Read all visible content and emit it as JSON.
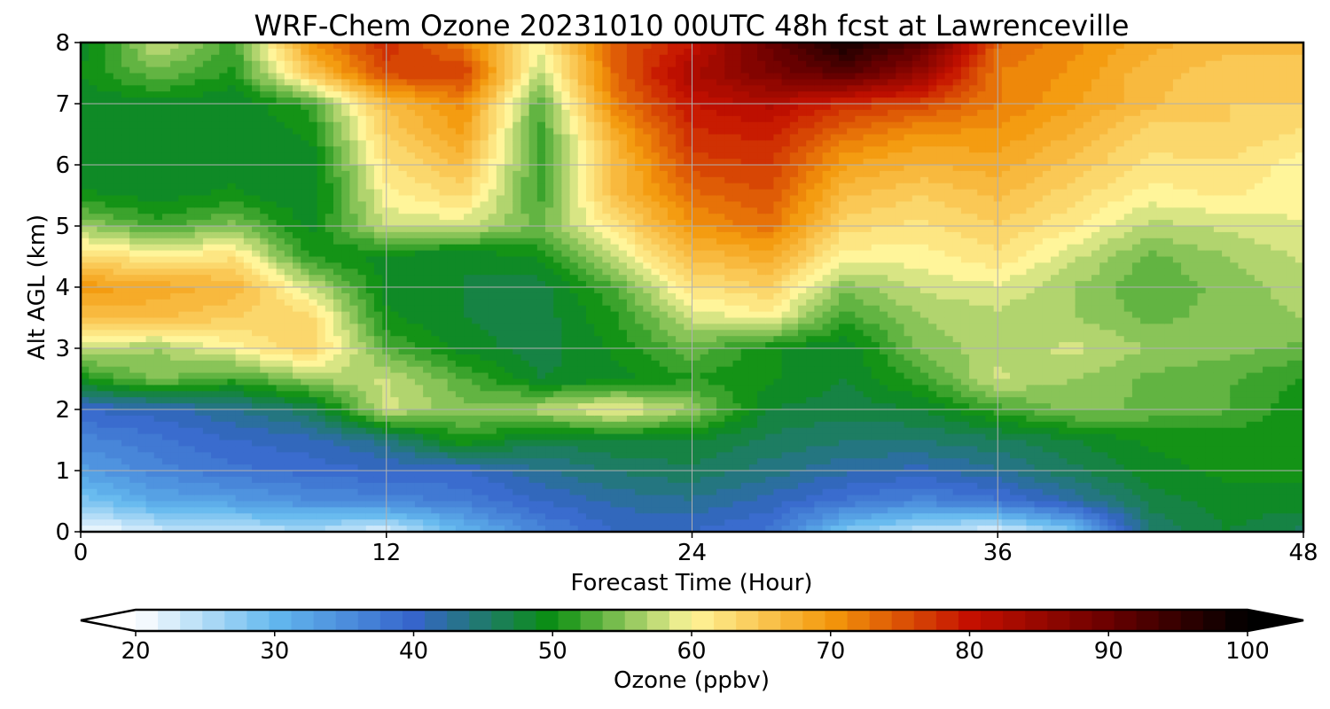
{
  "chart_data": {
    "type": "heatmap",
    "title": "WRF-Chem Ozone  20231010 00UTC 48h fcst at Lawrenceville",
    "xlabel": "Forecast Time (Hour)",
    "ylabel": "Alt AGL (km)",
    "xlim": [
      0,
      48
    ],
    "ylim": [
      0,
      8
    ],
    "x_ticks": [
      0,
      12,
      24,
      36,
      48
    ],
    "y_ticks": [
      0,
      1,
      2,
      3,
      4,
      5,
      6,
      7,
      8
    ],
    "grid": true,
    "x": [
      0,
      3,
      6,
      9,
      12,
      15,
      18,
      21,
      24,
      27,
      30,
      33,
      36,
      39,
      42,
      45,
      48
    ],
    "y": [
      0,
      0.5,
      1,
      1.5,
      2,
      2.5,
      3,
      3.5,
      4,
      4.5,
      5,
      5.5,
      6,
      6.5,
      7,
      7.5,
      8
    ],
    "z": [
      [
        20,
        23,
        24,
        25,
        22,
        30,
        36,
        40,
        40,
        38,
        28,
        24,
        22,
        28,
        45,
        48,
        46
      ],
      [
        28,
        32,
        33,
        35,
        36,
        37,
        40,
        42,
        43,
        41,
        38,
        36,
        38,
        42,
        47,
        49,
        49
      ],
      [
        33,
        36,
        38,
        39,
        40,
        40,
        43,
        45,
        46,
        44,
        42,
        41,
        43,
        46,
        49,
        50,
        50
      ],
      [
        36,
        38,
        40,
        41,
        44,
        51,
        47,
        48,
        48,
        46,
        45,
        45,
        46,
        48,
        50,
        50,
        50
      ],
      [
        40,
        41,
        43,
        46,
        58,
        55,
        57,
        60,
        56,
        48,
        47,
        48,
        52,
        55,
        54,
        53,
        50
      ],
      [
        50,
        55,
        52,
        56,
        58,
        53,
        48,
        49,
        51,
        50,
        48,
        52,
        58,
        56,
        54,
        53,
        51
      ],
      [
        58,
        56,
        60,
        64,
        53,
        49,
        47,
        50,
        54,
        50,
        48,
        55,
        57,
        58,
        56,
        55,
        54
      ],
      [
        66,
        66,
        64,
        63,
        50,
        48,
        47,
        51,
        58,
        60,
        52,
        56,
        57,
        56,
        54,
        55,
        56
      ],
      [
        70,
        68,
        67,
        58,
        49,
        48,
        47,
        53,
        62,
        64,
        55,
        58,
        59,
        56,
        53,
        55,
        57
      ],
      [
        63,
        61,
        62,
        51,
        49,
        48,
        50,
        58,
        66,
        68,
        60,
        60,
        62,
        58,
        54,
        56,
        58
      ],
      [
        56,
        52,
        55,
        49,
        58,
        58,
        54,
        62,
        70,
        73,
        63,
        62,
        64,
        61,
        57,
        58,
        59
      ],
      [
        50,
        49,
        50,
        48,
        60,
        63,
        52,
        66,
        73,
        75,
        66,
        64,
        66,
        63,
        60,
        61,
        60
      ],
      [
        48,
        48,
        49,
        48,
        62,
        66,
        52,
        66,
        76,
        77,
        69,
        67,
        68,
        65,
        62,
        62,
        60
      ],
      [
        48,
        48,
        48,
        50,
        64,
        69,
        52,
        68,
        78,
        79,
        73,
        70,
        70,
        67,
        63,
        64,
        62
      ],
      [
        48,
        49,
        48,
        52,
        66,
        71,
        53,
        72,
        80,
        82,
        78,
        76,
        72,
        69,
        66,
        64,
        64
      ],
      [
        50,
        54,
        51,
        65,
        76,
        77,
        57,
        74,
        83,
        88,
        92,
        85,
        72,
        70,
        66,
        65,
        65
      ],
      [
        48,
        58,
        52,
        70,
        78,
        72,
        60,
        74,
        80,
        90,
        98,
        92,
        74,
        71,
        68,
        66,
        66
      ]
    ],
    "colorbar": {
      "label": "Ozone  (ppbv)",
      "min": 20,
      "max": 100,
      "ticks": [
        20,
        30,
        40,
        50,
        60,
        70,
        80,
        90,
        100
      ],
      "extend": "both",
      "colors": {
        "20": "#ffffff",
        "30": "#63b8ee",
        "40": "#3665cb",
        "50": "#0a8f10",
        "60": "#fff59a",
        "70": "#f4980b",
        "80": "#c41000",
        "90": "#6a0000",
        "100": "#000000"
      }
    }
  }
}
